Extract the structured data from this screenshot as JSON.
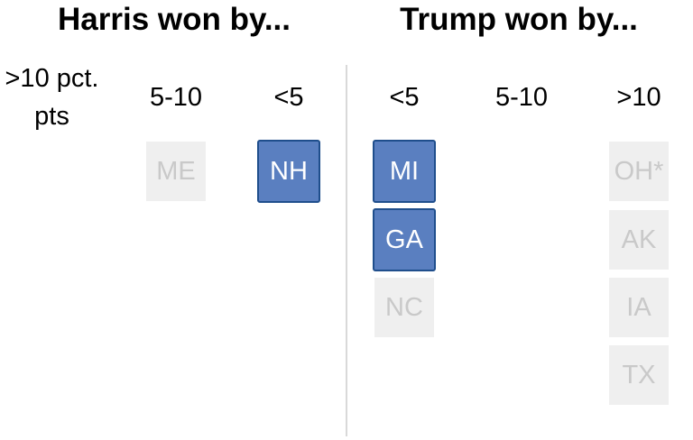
{
  "titles": {
    "harris": "Harris won by...",
    "trump": "Trump won by..."
  },
  "columns": {
    "harris_gt10": ">10 pct. pts",
    "harris_5_10": "5-10",
    "harris_lt5": "<5",
    "trump_lt5": "<5",
    "trump_5_10": "5-10",
    "trump_gt10": ">10"
  },
  "colors": {
    "highlight": "#5a7fc0",
    "highlight_border": "#1f4e8c",
    "muted": "#efefef",
    "muted_text": "#c9c9c9"
  },
  "states": {
    "harris_5_10": [
      {
        "label": "ME",
        "highlighted": false
      }
    ],
    "harris_lt5": [
      {
        "label": "NH",
        "highlighted": true
      }
    ],
    "trump_lt5": [
      {
        "label": "MI",
        "highlighted": true
      },
      {
        "label": "GA",
        "highlighted": true
      },
      {
        "label": "NC",
        "highlighted": false
      }
    ],
    "trump_gt10": [
      {
        "label": "OH*",
        "highlighted": false
      },
      {
        "label": "AK",
        "highlighted": false
      },
      {
        "label": "IA",
        "highlighted": false
      },
      {
        "label": "TX",
        "highlighted": false
      }
    ]
  }
}
